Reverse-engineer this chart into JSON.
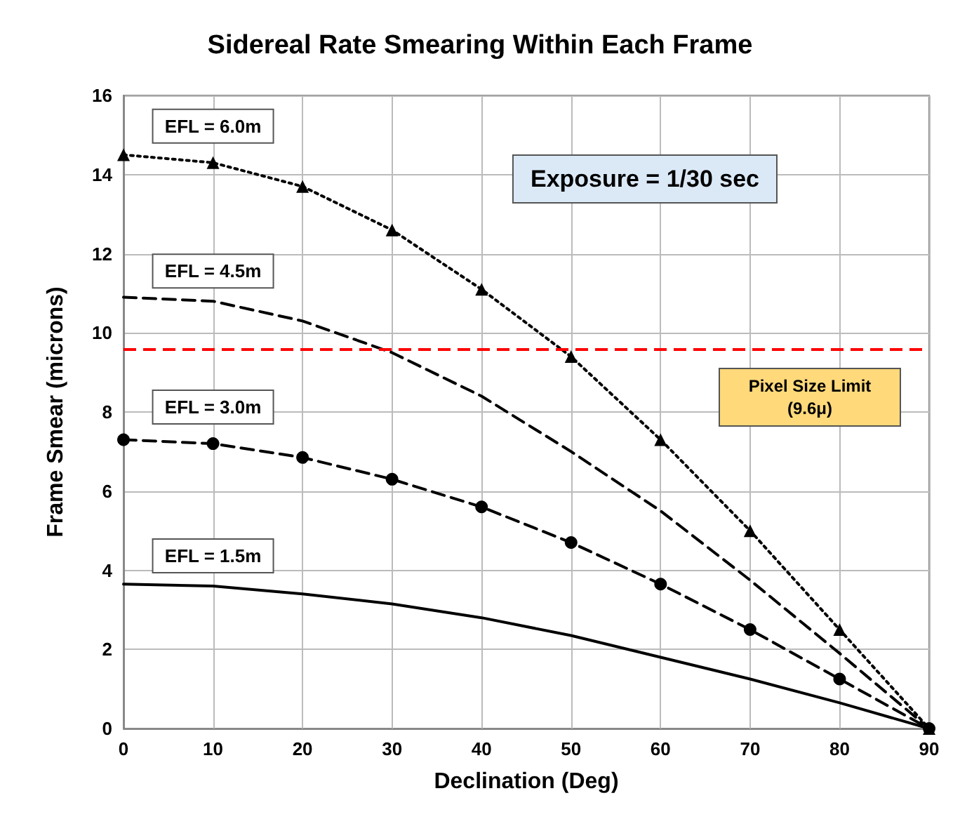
{
  "chart_data": {
    "type": "line",
    "title": "Sidereal Rate Smearing Within Each Frame",
    "xlabel": "Declination (Deg)",
    "ylabel": "Frame Smear (microns)",
    "x": [
      0,
      10,
      20,
      30,
      40,
      50,
      60,
      70,
      80,
      90
    ],
    "series": [
      {
        "name": "EFL = 6.0m",
        "color": "#000000",
        "marker": "triangle",
        "line_style": "dotted",
        "values": [
          14.5,
          14.3,
          13.7,
          12.6,
          11.1,
          9.4,
          7.3,
          5.0,
          2.5,
          0
        ]
      },
      {
        "name": "EFL = 4.5m",
        "color": "#000000",
        "line_style": "dashed",
        "values": [
          10.9,
          10.8,
          10.3,
          9.5,
          8.4,
          7.0,
          5.5,
          3.75,
          1.9,
          0
        ]
      },
      {
        "name": "EFL = 3.0m",
        "color": "#000000",
        "marker": "circle",
        "line_style": "dashed",
        "values": [
          7.3,
          7.2,
          6.85,
          6.3,
          5.6,
          4.7,
          3.65,
          2.5,
          1.25,
          0
        ]
      },
      {
        "name": "EFL = 1.5m",
        "color": "#000000",
        "line_style": "solid",
        "values": [
          3.65,
          3.6,
          3.4,
          3.15,
          2.8,
          2.35,
          1.8,
          1.25,
          0.65,
          0
        ]
      }
    ],
    "xlim": [
      0,
      90
    ],
    "xticks": [
      0,
      10,
      20,
      30,
      40,
      50,
      60,
      70,
      80,
      90
    ],
    "ylim": [
      0,
      16
    ],
    "yticks": [
      0,
      2,
      4,
      6,
      8,
      10,
      12,
      14,
      16
    ],
    "grid": true,
    "legend": false,
    "ref_lines": [
      {
        "axis": "y",
        "value": 9.6,
        "label": "Pixel Size Limit (9.6μ)",
        "color": "#ff0000",
        "line_style": "dashed"
      }
    ],
    "annotations": [
      "Exposure = 1/30 sec"
    ]
  }
}
